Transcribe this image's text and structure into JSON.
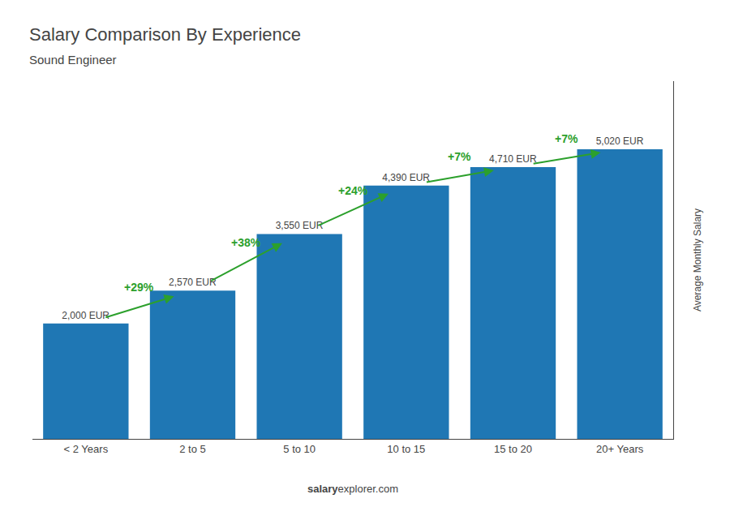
{
  "chart_data": {
    "type": "bar",
    "title": "Salary Comparison By Experience",
    "subtitle": "Sound Engineer",
    "ylabel": "Average Monthly Salary",
    "categories": [
      "< 2 Years",
      "2 to 5",
      "5 to 10",
      "10 to 15",
      "15 to 20",
      "20+ Years"
    ],
    "values": [
      2000,
      2570,
      3550,
      4390,
      4710,
      5020
    ],
    "value_labels": [
      "2,000 EUR",
      "2,570 EUR",
      "3,550 EUR",
      "4,390 EUR",
      "4,710 EUR",
      "5,020 EUR"
    ],
    "data_labels": true,
    "annotations": [
      "+29%",
      "+38%",
      "+24%",
      "+7%",
      "+7%"
    ],
    "footer": [
      "salary",
      "explorer.com"
    ],
    "ylim": [
      0,
      6200
    ],
    "grid": false,
    "tick_labels": "x"
  }
}
